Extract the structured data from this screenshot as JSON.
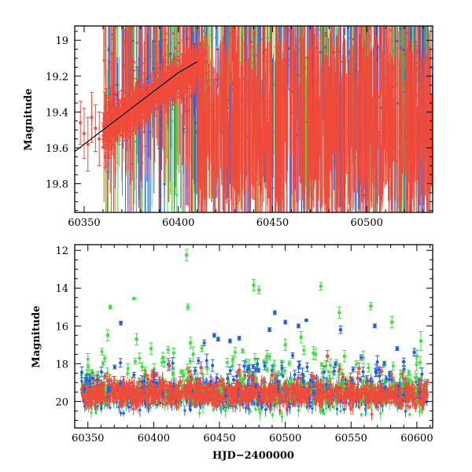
{
  "chart_data": [
    {
      "type": "scatter",
      "title": "",
      "xlabel": "",
      "ylabel": "Magnitude",
      "xlim": [
        60345,
        60535
      ],
      "ylim": [
        19.96,
        18.92
      ],
      "y_inverted": true,
      "grid": false,
      "legend": "none",
      "x_ticks": [
        60350,
        60400,
        60450,
        60500
      ],
      "y_ticks": [
        19,
        19.2,
        19.4,
        19.6,
        19.8
      ],
      "colors": {
        "red": "#f04a3a",
        "green": "#3ee03e",
        "blue": "#1f5fe8",
        "model": "#000000"
      },
      "model_curve": {
        "description_points": [
          [
            60345,
            19.62
          ],
          [
            60360,
            19.5
          ],
          [
            60375,
            19.38
          ],
          [
            60390,
            19.26
          ],
          [
            60400,
            19.18
          ],
          [
            60410,
            19.12
          ]
        ]
      },
      "series": [
        {
          "color": "red",
          "points": [
            [
              60348,
              19.46,
              0.12
            ],
            [
              60350,
              19.52,
              0.14
            ],
            [
              60352,
              19.58,
              0.15
            ],
            [
              60354,
              19.43,
              0.14
            ],
            [
              60356,
              19.49,
              0.13
            ],
            [
              60358,
              19.55,
              0.15
            ],
            [
              60361,
              19.42,
              0.13
            ],
            [
              60364,
              19.38,
              0.12
            ],
            [
              60368,
              19.36,
              0.12
            ],
            [
              60372,
              19.33,
              0.11
            ],
            [
              60376,
              19.31,
              0.1
            ],
            [
              60380,
              19.27,
              0.1
            ],
            [
              60384,
              19.24,
              0.09
            ],
            [
              60388,
              19.22,
              0.09
            ],
            [
              60392,
              19.2,
              0.08
            ],
            [
              60396,
              19.18,
              0.08
            ],
            [
              60400,
              19.15,
              0.08
            ],
            [
              60404,
              19.14,
              0.08
            ],
            [
              60408,
              19.16,
              0.1
            ],
            [
              60415,
              19.3,
              0.3
            ],
            [
              60425,
              19.45,
              0.4
            ],
            [
              60440,
              19.5,
              0.45
            ],
            [
              60460,
              19.5,
              0.45
            ],
            [
              60480,
              19.45,
              0.45
            ],
            [
              60500,
              19.5,
              0.45
            ],
            [
              60520,
              19.45,
              0.45
            ]
          ]
        },
        {
          "color": "green",
          "points": [
            [
              60362,
              19.3,
              0.4
            ],
            [
              60375,
              19.5,
              0.4
            ],
            [
              60390,
              19.4,
              0.5
            ],
            [
              60405,
              19.3,
              0.5
            ],
            [
              60420,
              19.4,
              0.5
            ],
            [
              60445,
              19.5,
              0.5
            ],
            [
              60470,
              19.5,
              0.5
            ],
            [
              60495,
              19.4,
              0.5
            ]
          ]
        },
        {
          "color": "blue",
          "points": [
            [
              60365,
              19.5,
              0.4
            ],
            [
              60380,
              19.5,
              0.5
            ],
            [
              60395,
              19.4,
              0.5
            ],
            [
              60410,
              19.5,
              0.5
            ],
            [
              60430,
              19.5,
              0.5
            ],
            [
              60455,
              19.5,
              0.5
            ],
            [
              60480,
              19.5,
              0.5
            ],
            [
              60505,
              19.5,
              0.5
            ],
            [
              60525,
              19.5,
              0.5
            ]
          ]
        }
      ]
    },
    {
      "type": "scatter",
      "title": "",
      "xlabel": "HJD−2400000",
      "ylabel": "Magnitude",
      "xlim": [
        60340,
        60612
      ],
      "ylim": [
        21.4,
        11.7
      ],
      "y_inverted": true,
      "grid": false,
      "legend": "none",
      "x_ticks": [
        60350,
        60400,
        60450,
        60500,
        60550,
        60600
      ],
      "y_ticks": [
        12,
        14,
        16,
        18,
        20
      ],
      "colors": {
        "red": "#f04a3a",
        "green": "#3ee03e",
        "blue": "#1f5fe8"
      },
      "baseline_band": {
        "x_start": 60345,
        "x_end": 60608,
        "y_center": 19.6,
        "half_width": 0.5
      },
      "outliers": {
        "green": [
          [
            60365,
            16.5,
            0.3
          ],
          [
            60367,
            15.0,
            0.1
          ],
          [
            60385,
            14.55,
            0.05
          ],
          [
            60387,
            16.7,
            0.3
          ],
          [
            60398,
            17.2,
            0.3
          ],
          [
            60425,
            12.25,
            0.3
          ],
          [
            60426,
            15.0,
            0.15
          ],
          [
            60428,
            16.9,
            0.3
          ],
          [
            60430,
            17.5,
            0.4
          ],
          [
            60476,
            13.85,
            0.3
          ],
          [
            60480,
            14.1,
            0.2
          ],
          [
            60486,
            17.6,
            0.3
          ],
          [
            60500,
            17.0,
            0.3
          ],
          [
            60512,
            16.6,
            0.3
          ],
          [
            60523,
            17.5,
            0.3
          ],
          [
            60527,
            13.9,
            0.2
          ],
          [
            60541,
            15.3,
            0.3
          ],
          [
            60545,
            17.6,
            0.3
          ],
          [
            60565,
            14.95,
            0.2
          ],
          [
            60581,
            15.8,
            0.3
          ],
          [
            60603,
            16.8,
            0.5
          ]
        ],
        "blue": [
          [
            60375,
            15.85,
            0.1
          ],
          [
            60446,
            16.5,
            0.1
          ],
          [
            60449,
            16.7,
            0.1
          ],
          [
            60458,
            16.8,
            0.1
          ],
          [
            60465,
            16.65,
            0.1
          ],
          [
            60488,
            16.2,
            0.1
          ],
          [
            60492,
            15.3,
            0.1
          ],
          [
            60500,
            15.8,
            0.1
          ],
          [
            60510,
            16.0,
            0.1
          ],
          [
            60516,
            15.7,
            0.05
          ],
          [
            60542,
            16.2,
            0.2
          ],
          [
            60568,
            16.0,
            0.1
          ],
          [
            60585,
            17.2,
            0.1
          ],
          [
            60598,
            17.4,
            0.2
          ],
          [
            60590,
            17.9,
            0.2
          ]
        ],
        "red": [
          [
            60363,
            18.65,
            0.15
          ],
          [
            60394,
            18.6,
            0.2
          ],
          [
            60412,
            18.1,
            0.25
          ],
          [
            60436,
            18.2,
            0.3
          ],
          [
            60465,
            18.35,
            0.3
          ],
          [
            60490,
            18.6,
            0.3
          ],
          [
            60532,
            17.6,
            0.3
          ],
          [
            60556,
            18.25,
            0.3
          ],
          [
            60573,
            18.4,
            0.2
          ]
        ]
      }
    }
  ]
}
